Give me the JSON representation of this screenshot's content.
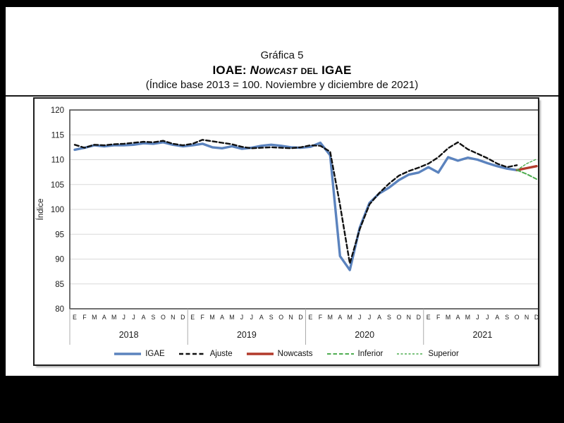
{
  "title": {
    "line1": "Gráfica 5",
    "line2_prefix": "IOAE: ",
    "line2_nowcast": "Nowcast",
    "line2_mid": " del ",
    "line2_suffix": "IGAE",
    "line3": "(Índice base 2013 = 100. Noviembre y diciembre de 2021)"
  },
  "chart_data": {
    "type": "line",
    "title": "IOAE: Nowcast del IGAE",
    "subtitle": "Índice base 2013 = 100. Noviembre y diciembre de 2021",
    "ylabel": "Índice",
    "ylim": [
      80,
      120
    ],
    "yticks": [
      80,
      85,
      90,
      95,
      100,
      105,
      110,
      115,
      120
    ],
    "grid": "horizontal",
    "legend_position": "bottom",
    "month_labels": [
      "E",
      "F",
      "M",
      "A",
      "M",
      "J",
      "J",
      "A",
      "S",
      "O",
      "N",
      "D"
    ],
    "years": [
      "2018",
      "2019",
      "2020",
      "2021"
    ],
    "colors": {
      "igae": "#5B83BE",
      "ajuste": "#111111",
      "nowcast": "#B23A2B",
      "interval": "#4FAD51",
      "gridline": "#D9D9D9",
      "axis": "#4D4D4D",
      "separator": "#ACACAC"
    },
    "series": [
      {
        "name": "IGAE",
        "color": "#5B83BE",
        "style": "solid",
        "width": 3.4,
        "values": [
          112.0,
          112.4,
          112.9,
          112.7,
          112.9,
          112.9,
          113.0,
          113.3,
          113.2,
          113.5,
          113.0,
          112.7,
          112.9,
          113.2,
          112.5,
          112.3,
          112.7,
          112.2,
          112.4,
          112.8,
          113.0,
          112.8,
          112.5,
          112.4,
          112.6,
          113.4,
          110.9,
          90.6,
          87.8,
          96.3,
          101.3,
          103.2,
          104.4,
          105.9,
          107.0,
          107.4,
          108.5,
          107.4,
          110.5,
          109.8,
          110.4,
          110.0,
          109.3,
          108.7,
          108.2,
          107.9,
          null,
          null
        ]
      },
      {
        "name": "Ajuste",
        "color": "#111111",
        "style": "dashed",
        "width": 2.4,
        "values": [
          113.0,
          112.4,
          113.0,
          112.9,
          113.1,
          113.2,
          113.4,
          113.6,
          113.5,
          113.8,
          113.2,
          112.9,
          113.2,
          114.0,
          113.7,
          113.4,
          113.1,
          112.6,
          112.3,
          112.4,
          112.5,
          112.4,
          112.3,
          112.5,
          112.9,
          112.8,
          111.6,
          100.9,
          89.1,
          96.0,
          101.0,
          103.3,
          105.2,
          106.8,
          107.7,
          108.4,
          109.2,
          110.5,
          112.3,
          113.5,
          112.1,
          111.2,
          110.3,
          109.2,
          108.5,
          108.9,
          null,
          null
        ]
      },
      {
        "name": "Nowcasts",
        "color": "#B23A2B",
        "style": "solid",
        "width": 3.4,
        "values": [
          null,
          null,
          null,
          null,
          null,
          null,
          null,
          null,
          null,
          null,
          null,
          null,
          null,
          null,
          null,
          null,
          null,
          null,
          null,
          null,
          null,
          null,
          null,
          null,
          null,
          null,
          null,
          null,
          null,
          null,
          null,
          null,
          null,
          null,
          null,
          null,
          null,
          null,
          null,
          null,
          null,
          null,
          null,
          null,
          null,
          107.9,
          108.3,
          108.7
        ]
      },
      {
        "name": "Inferior",
        "color": "#4FAD51",
        "style": "dashed-medium",
        "width": 2.0,
        "values": [
          null,
          null,
          null,
          null,
          null,
          null,
          null,
          null,
          null,
          null,
          null,
          null,
          null,
          null,
          null,
          null,
          null,
          null,
          null,
          null,
          null,
          null,
          null,
          null,
          null,
          null,
          null,
          null,
          null,
          null,
          null,
          null,
          null,
          null,
          null,
          null,
          null,
          null,
          null,
          null,
          null,
          null,
          null,
          null,
          null,
          107.9,
          107.1,
          106.1
        ]
      },
      {
        "name": "Superior",
        "color": "#4FAD51",
        "style": "dashed-fine",
        "width": 1.4,
        "values": [
          null,
          null,
          null,
          null,
          null,
          null,
          null,
          null,
          null,
          null,
          null,
          null,
          null,
          null,
          null,
          null,
          null,
          null,
          null,
          null,
          null,
          null,
          null,
          null,
          null,
          null,
          null,
          null,
          null,
          null,
          null,
          null,
          null,
          null,
          null,
          null,
          null,
          null,
          null,
          null,
          null,
          null,
          null,
          null,
          null,
          107.9,
          109.2,
          110.1
        ]
      }
    ]
  }
}
